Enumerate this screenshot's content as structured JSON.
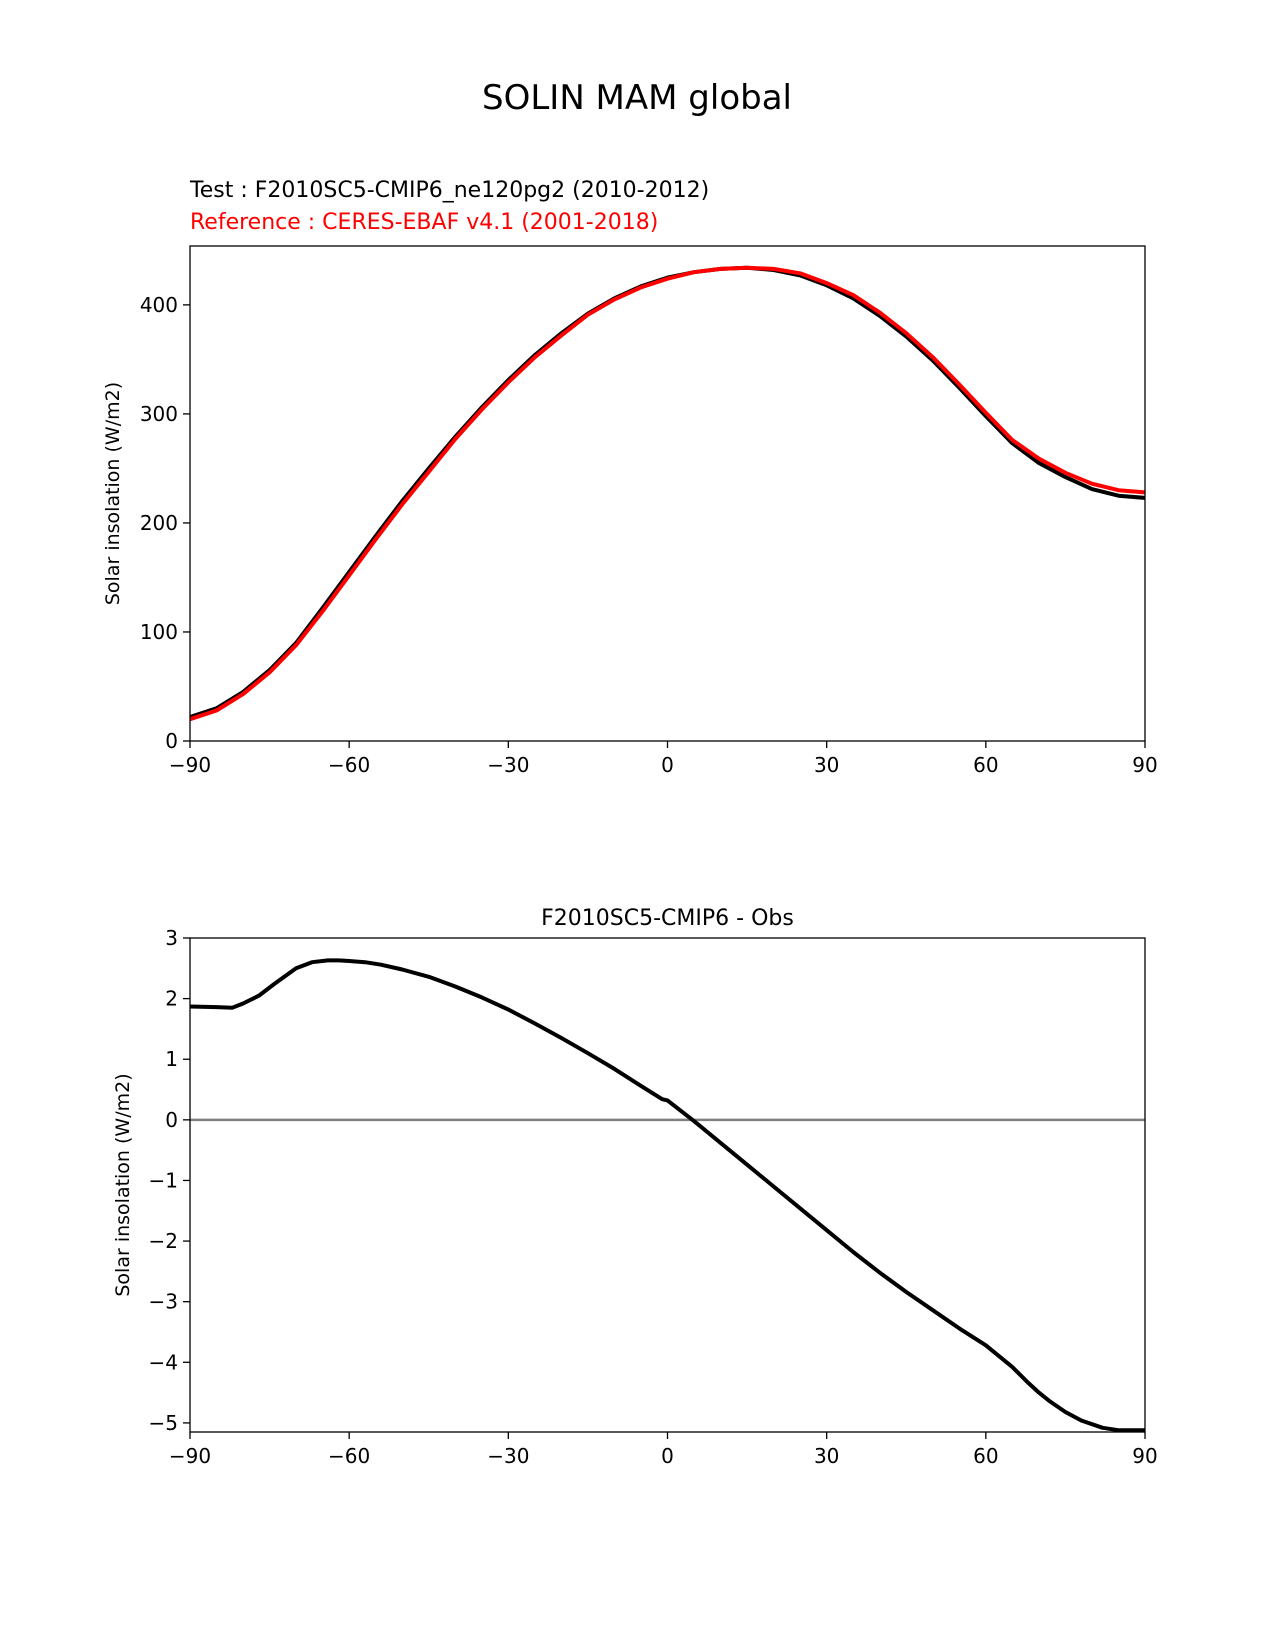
{
  "figure": {
    "title": "SOLIN MAM global"
  },
  "chart_data": [
    {
      "type": "line",
      "title_test": "Test : F2010SC5-CMIP6_ne120pg2 (2010-2012)",
      "title_reference": "Reference : CERES-EBAF v4.1 (2001-2018)",
      "xlabel": "",
      "ylabel": "Solar insolation (W/m2)",
      "xlim": [
        -90,
        90
      ],
      "ylim": [
        0,
        454
      ],
      "xticks": [
        -90,
        -60,
        -30,
        0,
        30,
        60,
        90
      ],
      "xtick_labels": [
        "−90",
        "−60",
        "−30",
        "0",
        "30",
        "60",
        "90"
      ],
      "yticks": [
        0,
        100,
        200,
        300,
        400
      ],
      "ytick_labels": [
        "0",
        "100",
        "200",
        "300",
        "400"
      ],
      "grid": false,
      "series": [
        {
          "color": "#000000",
          "x": [
            -90,
            -85,
            -80,
            -75,
            -70,
            -65,
            -60,
            -55,
            -50,
            -45,
            -40,
            -35,
            -30,
            -25,
            -20,
            -15,
            -10,
            -5,
            0,
            5,
            10,
            15,
            20,
            25,
            30,
            35,
            40,
            45,
            50,
            55,
            60,
            65,
            70,
            75,
            80,
            85,
            90
          ],
          "y": [
            22,
            30,
            45,
            65,
            90,
            122,
            155,
            188,
            220,
            250,
            279,
            306,
            331,
            354,
            374,
            392,
            406,
            417,
            425,
            430,
            433,
            434,
            432,
            427,
            418,
            406,
            390,
            371,
            349,
            324,
            298,
            273,
            255,
            242,
            231,
            225,
            223
          ]
        },
        {
          "color": "#ff0000",
          "x": [
            -90,
            -85,
            -80,
            -75,
            -70,
            -65,
            -60,
            -55,
            -50,
            -45,
            -40,
            -35,
            -30,
            -25,
            -20,
            -15,
            -10,
            -5,
            0,
            5,
            10,
            15,
            20,
            25,
            30,
            35,
            40,
            45,
            50,
            55,
            60,
            65,
            70,
            75,
            80,
            85,
            90
          ],
          "y": [
            20,
            28,
            43,
            63,
            88,
            119,
            152,
            185,
            217,
            247,
            277,
            304,
            329,
            352,
            372,
            391,
            405,
            416,
            424,
            430,
            433,
            434,
            433,
            429,
            420,
            409,
            393,
            374,
            352,
            327,
            301,
            276,
            259,
            246,
            236,
            230,
            228
          ]
        }
      ]
    },
    {
      "type": "line",
      "title": "F2010SC5-CMIP6 - Obs",
      "xlabel": "",
      "ylabel": "Solar insolation (W/m2)",
      "xlim": [
        -90,
        90
      ],
      "ylim": [
        -5.15,
        3
      ],
      "xticks": [
        -90,
        -60,
        -30,
        0,
        30,
        60,
        90
      ],
      "xtick_labels": [
        "−90",
        "−60",
        "−30",
        "0",
        "30",
        "60",
        "90"
      ],
      "yticks": [
        3,
        2,
        1,
        0,
        -1,
        -2,
        -3,
        -4,
        -5
      ],
      "ytick_labels": [
        "3",
        "2",
        "1",
        "0",
        "−1",
        "−2",
        "−3",
        "−4",
        "−5"
      ],
      "grid": false,
      "zero_line_color": "#808080",
      "series": [
        {
          "color": "#000000",
          "x": [
            -90,
            -85,
            -82,
            -80,
            -77,
            -74,
            -70,
            -67,
            -64,
            -62,
            -60,
            -57,
            -54,
            -50,
            -45,
            -40,
            -35,
            -30,
            -25,
            -20,
            -15,
            -10,
            -5,
            -1,
            0,
            5,
            10,
            15,
            20,
            25,
            30,
            35,
            40,
            45,
            50,
            55,
            60,
            65,
            68,
            70,
            72,
            75,
            78,
            82,
            85,
            90
          ],
          "y": [
            1.87,
            1.86,
            1.85,
            1.92,
            2.05,
            2.25,
            2.5,
            2.6,
            2.63,
            2.63,
            2.62,
            2.6,
            2.56,
            2.48,
            2.36,
            2.2,
            2.02,
            1.82,
            1.59,
            1.35,
            1.1,
            0.84,
            0.56,
            0.34,
            0.32,
            -0.02,
            -0.38,
            -0.74,
            -1.1,
            -1.46,
            -1.82,
            -2.18,
            -2.52,
            -2.84,
            -3.14,
            -3.44,
            -3.72,
            -4.08,
            -4.34,
            -4.5,
            -4.64,
            -4.82,
            -4.96,
            -5.08,
            -5.12,
            -5.12
          ]
        }
      ]
    }
  ]
}
